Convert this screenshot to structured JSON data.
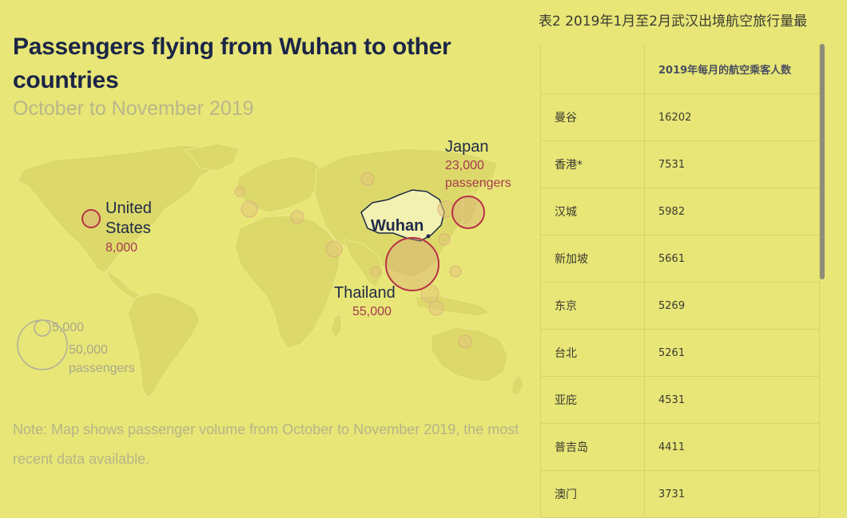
{
  "map": {
    "title": "Passengers flying from Wuhan to other countries",
    "subtitle": "October to November 2019",
    "note": "Note: Map shows passenger volume from October to November 2019, the most recent data available.",
    "origin_label": "Wuhan",
    "labels": [
      {
        "name": "United States",
        "value": "8,000"
      },
      {
        "name": "Japan",
        "value": "23,000 passengers"
      },
      {
        "name": "Thailand",
        "value": "55,000"
      }
    ],
    "legend": {
      "small": "5,000",
      "large": "50,000",
      "unit": "passengers"
    },
    "colors": {
      "background": "#e8e677",
      "land": "#dedb6c",
      "bubble_highlight": "#b63246",
      "bubble_other": "#e6b985",
      "title": "#1b2547"
    }
  },
  "table": {
    "title": "表2 2019年1月至2月武汉出境航空旅行量最",
    "header": "2019年每月的航空乘客人数",
    "rows": [
      {
        "city": "曼谷",
        "value": "16202"
      },
      {
        "city": "香港*",
        "value": "7531"
      },
      {
        "city": "汉城",
        "value": "5982"
      },
      {
        "city": "新加坡",
        "value": "5661"
      },
      {
        "city": "东京",
        "value": "5269"
      },
      {
        "city": "台北",
        "value": "5261"
      },
      {
        "city": "亚庇",
        "value": "4531"
      },
      {
        "city": "普吉岛",
        "value": "4411"
      },
      {
        "city": "澳门",
        "value": "3731"
      }
    ]
  }
}
